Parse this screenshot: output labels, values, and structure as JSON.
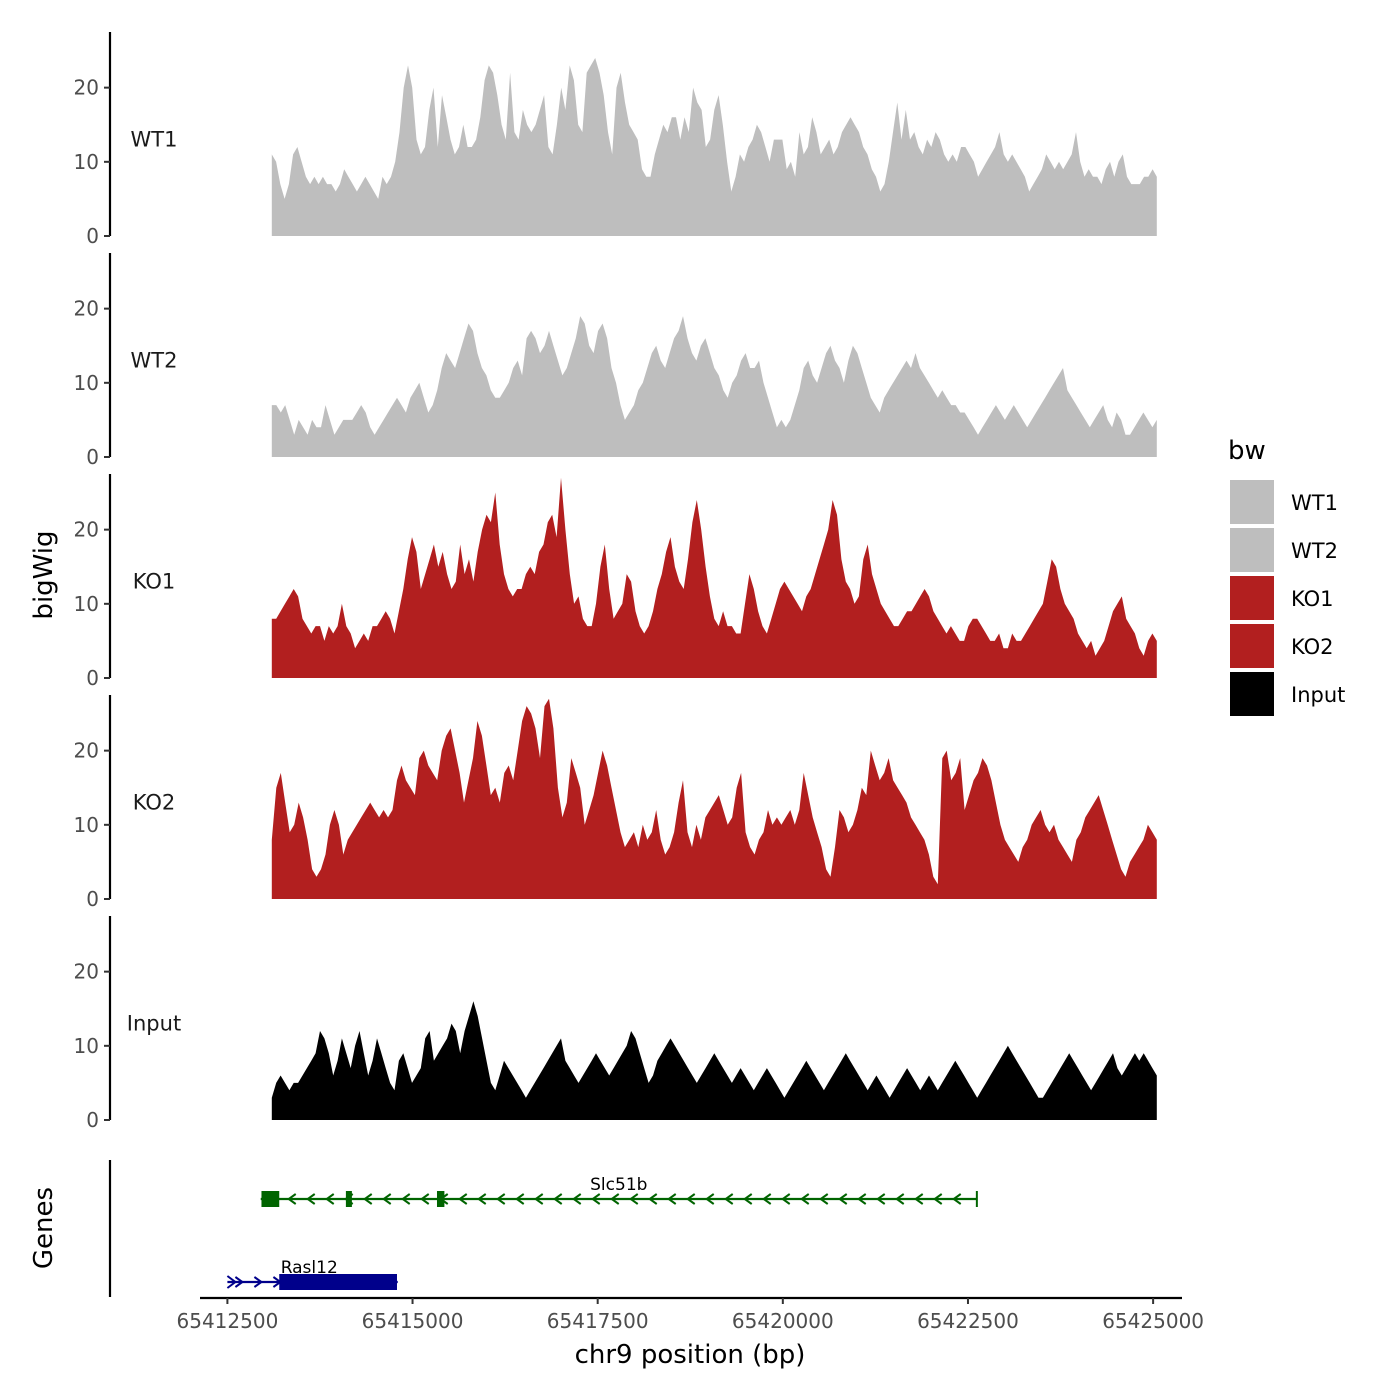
{
  "chart_data": {
    "type": "area",
    "chromosome": "chr9",
    "xlabel": "chr9 position (bp)",
    "ylabel_tracks": "bigWig",
    "ylabel_genes": "Genes",
    "x_ticks": [
      65412500,
      65415000,
      65417500,
      65420000,
      65422500,
      65425000
    ],
    "x_tick_labels": [
      "65412500",
      "65415000",
      "65417500",
      "65420000",
      "65422500",
      "65425000"
    ],
    "xlim": [
      65412130,
      65425390
    ],
    "signal_range": [
      65413100,
      65425050
    ],
    "ylim": [
      0,
      27.5
    ],
    "y_ticks": [
      0,
      10,
      20
    ],
    "y_tick_labels": [
      "0",
      "10",
      "20"
    ],
    "legend": {
      "title": "bw",
      "entries": [
        {
          "label": "WT1",
          "color": "#bebebe"
        },
        {
          "label": "WT2",
          "color": "#bebebe"
        },
        {
          "label": "KO1",
          "color": "#b21f1f"
        },
        {
          "label": "KO2",
          "color": "#b21f1f"
        },
        {
          "label": "Input",
          "color": "#000000"
        }
      ]
    },
    "series": [
      {
        "name": "WT1",
        "color": "#bebebe",
        "values": [
          11,
          10,
          7,
          5,
          7,
          11,
          12,
          10,
          8,
          7,
          8,
          7,
          8,
          7,
          7,
          6,
          7,
          9,
          8,
          7,
          6,
          7,
          8,
          7,
          6,
          5,
          8,
          7,
          8,
          10,
          14,
          20,
          23,
          20,
          13,
          11,
          12,
          17,
          20,
          12,
          19,
          16,
          13,
          11,
          12,
          15,
          12,
          12,
          13,
          16,
          21,
          23,
          22,
          19,
          15,
          13,
          22,
          14,
          13,
          17,
          15,
          14,
          15,
          17,
          19,
          12,
          11,
          15,
          20,
          17,
          23,
          21,
          15,
          14,
          22,
          23,
          24,
          22,
          19,
          14,
          11,
          20,
          22,
          18,
          15,
          14,
          13,
          9,
          8,
          8,
          11,
          13,
          15,
          14,
          16,
          16,
          13,
          16,
          14,
          20,
          18,
          17,
          12,
          13,
          17,
          19,
          15,
          10,
          6,
          8,
          11,
          10,
          12,
          13,
          15,
          14,
          12,
          10,
          13,
          13,
          13,
          9,
          10,
          8,
          14,
          11,
          12,
          16,
          14,
          11,
          12,
          13,
          11,
          12,
          14,
          15,
          16,
          15,
          14,
          12,
          11,
          9,
          8,
          6,
          7,
          10,
          14,
          18,
          13,
          17,
          13,
          14,
          12,
          11,
          13,
          12,
          14,
          13,
          11,
          10,
          11,
          10,
          12,
          12,
          11,
          10,
          8,
          9,
          10,
          11,
          12,
          14,
          11,
          10,
          11,
          10,
          9,
          8,
          6,
          7,
          8,
          9,
          11,
          10,
          9,
          10,
          9,
          10,
          11,
          14,
          10,
          8,
          9,
          8,
          8,
          7,
          9,
          10,
          8,
          10,
          11,
          8,
          7,
          7,
          7,
          8,
          8,
          9,
          8
        ]
      },
      {
        "name": "WT2",
        "color": "#bebebe",
        "values": [
          7,
          7,
          6,
          7,
          5,
          3,
          5,
          4,
          3,
          5,
          4,
          4,
          7,
          5,
          3,
          4,
          5,
          5,
          5,
          6,
          7,
          6,
          4,
          3,
          4,
          5,
          6,
          7,
          8,
          7,
          6,
          8,
          9,
          10,
          8,
          6,
          7,
          9,
          12,
          14,
          13,
          12,
          14,
          16,
          18,
          17,
          14,
          12,
          11,
          9,
          8,
          8,
          9,
          10,
          12,
          13,
          11,
          16,
          17,
          16,
          14,
          15,
          17,
          15,
          13,
          11,
          12,
          14,
          16,
          19,
          18,
          15,
          14,
          17,
          18,
          16,
          12,
          10,
          7,
          5,
          6,
          7,
          9,
          10,
          12,
          14,
          15,
          13,
          12,
          14,
          16,
          17,
          19,
          16,
          14,
          13,
          15,
          16,
          14,
          12,
          11,
          9,
          8,
          10,
          11,
          13,
          14,
          12,
          12,
          13,
          10,
          8,
          6,
          4,
          5,
          4,
          5,
          7,
          9,
          12,
          13,
          11,
          10,
          12,
          14,
          15,
          13,
          12,
          10,
          13,
          15,
          14,
          12,
          10,
          8,
          7,
          6,
          8,
          9,
          10,
          11,
          12,
          13,
          12,
          14,
          12,
          11,
          10,
          9,
          8,
          9,
          8,
          7,
          7,
          6,
          6,
          5,
          4,
          3,
          4,
          5,
          6,
          7,
          6,
          5,
          6,
          7,
          6,
          5,
          4,
          5,
          6,
          7,
          8,
          9,
          10,
          11,
          12,
          9,
          8,
          7,
          6,
          5,
          4,
          5,
          6,
          7,
          5,
          4,
          6,
          5,
          3,
          3,
          4,
          5,
          6,
          5,
          4,
          5
        ]
      },
      {
        "name": "KO1",
        "color": "#b21f1f",
        "values": [
          8,
          8,
          9,
          10,
          11,
          12,
          11,
          8,
          7,
          6,
          7,
          7,
          5,
          7,
          6,
          7,
          10,
          7,
          6,
          4,
          5,
          6,
          5,
          7,
          7,
          8,
          9,
          8,
          6,
          9,
          12,
          16,
          19,
          17,
          12,
          14,
          16,
          18,
          15,
          17,
          14,
          12,
          13,
          18,
          14,
          16,
          13,
          17,
          20,
          22,
          21,
          25,
          18,
          14,
          12,
          11,
          12,
          12,
          14,
          15,
          14,
          17,
          18,
          21,
          22,
          19,
          27,
          20,
          14,
          10,
          11,
          8,
          7,
          7,
          10,
          15,
          18,
          12,
          8,
          9,
          10,
          14,
          13,
          9,
          7,
          6,
          7,
          9,
          12,
          14,
          17,
          19,
          15,
          13,
          12,
          16,
          21,
          24,
          20,
          15,
          11,
          8,
          7,
          9,
          7,
          7,
          6,
          6,
          10,
          14,
          12,
          9,
          7,
          6,
          8,
          10,
          12,
          13,
          12,
          11,
          10,
          9,
          11,
          12,
          14,
          16,
          18,
          20,
          24,
          22,
          16,
          13,
          12,
          10,
          11,
          16,
          18,
          14,
          12,
          10,
          9,
          8,
          7,
          7,
          8,
          9,
          9,
          10,
          11,
          12,
          11,
          9,
          8,
          7,
          6,
          7,
          6,
          5,
          5,
          7,
          8,
          8,
          7,
          6,
          5,
          5,
          6,
          4,
          4,
          6,
          5,
          5,
          6,
          7,
          8,
          9,
          10,
          13,
          16,
          15,
          12,
          10,
          9,
          8,
          6,
          5,
          4,
          5,
          3,
          4,
          5,
          7,
          9,
          10,
          11,
          8,
          7,
          6,
          4,
          3,
          5,
          6,
          5
        ]
      },
      {
        "name": "KO2",
        "color": "#b21f1f",
        "values": [
          8,
          15,
          17,
          13,
          9,
          10,
          13,
          11,
          8,
          4,
          3,
          4,
          6,
          10,
          12,
          10,
          6,
          8,
          9,
          10,
          11,
          12,
          13,
          12,
          11,
          12,
          11,
          12,
          16,
          18,
          16,
          15,
          14,
          19,
          20,
          18,
          17,
          16,
          20,
          22,
          23,
          20,
          17,
          13,
          16,
          19,
          24,
          22,
          18,
          14,
          15,
          13,
          17,
          18,
          16,
          20,
          24,
          26,
          25,
          23,
          19,
          26,
          27,
          23,
          15,
          11,
          13,
          19,
          17,
          15,
          10,
          12,
          14,
          17,
          20,
          18,
          15,
          12,
          9,
          7,
          8,
          9,
          7,
          10,
          8,
          9,
          12,
          8,
          6,
          7,
          9,
          13,
          16,
          9,
          7,
          10,
          8,
          11,
          12,
          13,
          14,
          12,
          10,
          11,
          15,
          17,
          9,
          7,
          6,
          8,
          9,
          12,
          10,
          11,
          10,
          11,
          12,
          10,
          12,
          17,
          14,
          11,
          9,
          7,
          4,
          3,
          7,
          12,
          11,
          9,
          10,
          12,
          15,
          14,
          20,
          18,
          16,
          17,
          19,
          16,
          15,
          14,
          13,
          11,
          10,
          9,
          8,
          6,
          3,
          2,
          19,
          20,
          16,
          17,
          19,
          12,
          14,
          16,
          17,
          19,
          18,
          16,
          13,
          10,
          8,
          7,
          6,
          5,
          7,
          8,
          10,
          11,
          12,
          10,
          9,
          10,
          8,
          7,
          6,
          5,
          8,
          9,
          11,
          12,
          13,
          14,
          12,
          10,
          8,
          6,
          4,
          3,
          5,
          6,
          7,
          8,
          10,
          9,
          8
        ]
      },
      {
        "name": "Input",
        "color": "#000000",
        "values": [
          3,
          5,
          6,
          5,
          4,
          5,
          5,
          6,
          7,
          8,
          9,
          12,
          11,
          9,
          6,
          8,
          11,
          9,
          7,
          10,
          12,
          9,
          6,
          8,
          11,
          9,
          7,
          5,
          4,
          8,
          9,
          7,
          5,
          6,
          7,
          11,
          12,
          8,
          9,
          10,
          11,
          13,
          12,
          9,
          12,
          14,
          16,
          14,
          11,
          8,
          5,
          4,
          6,
          8,
          7,
          6,
          5,
          4,
          3,
          4,
          5,
          6,
          7,
          8,
          9,
          10,
          11,
          8,
          7,
          6,
          5,
          6,
          7,
          8,
          9,
          8,
          7,
          6,
          7,
          8,
          9,
          10,
          12,
          11,
          9,
          7,
          5,
          6,
          8,
          9,
          10,
          11,
          10,
          9,
          8,
          7,
          6,
          5,
          6,
          7,
          8,
          9,
          8,
          7,
          6,
          5,
          6,
          7,
          6,
          5,
          4,
          5,
          6,
          7,
          6,
          5,
          4,
          3,
          4,
          5,
          6,
          7,
          8,
          7,
          6,
          5,
          4,
          5,
          6,
          7,
          8,
          9,
          8,
          7,
          6,
          5,
          4,
          5,
          6,
          5,
          4,
          3,
          4,
          5,
          6,
          7,
          6,
          5,
          4,
          5,
          6,
          5,
          4,
          5,
          6,
          7,
          8,
          7,
          6,
          5,
          4,
          3,
          4,
          5,
          6,
          7,
          8,
          9,
          10,
          9,
          8,
          7,
          6,
          5,
          4,
          3,
          3,
          4,
          5,
          6,
          7,
          8,
          9,
          8,
          7,
          6,
          5,
          4,
          5,
          6,
          7,
          8,
          9,
          7,
          6,
          7,
          8,
          9,
          8,
          9,
          8,
          7,
          6
        ]
      }
    ],
    "genes": [
      {
        "name": "Slc51b",
        "color": "#006400",
        "strand": "-",
        "start": 65412950,
        "end": 65422620,
        "exons": [
          [
            65412960,
            65413200
          ],
          [
            65414100,
            65414180
          ],
          [
            65415330,
            65415430
          ]
        ]
      },
      {
        "name": "Rasl12",
        "color": "#00008b",
        "strand": "+",
        "start": 65412500,
        "end": 65414800,
        "exons": [
          [
            65413200,
            65414790
          ]
        ]
      }
    ]
  }
}
